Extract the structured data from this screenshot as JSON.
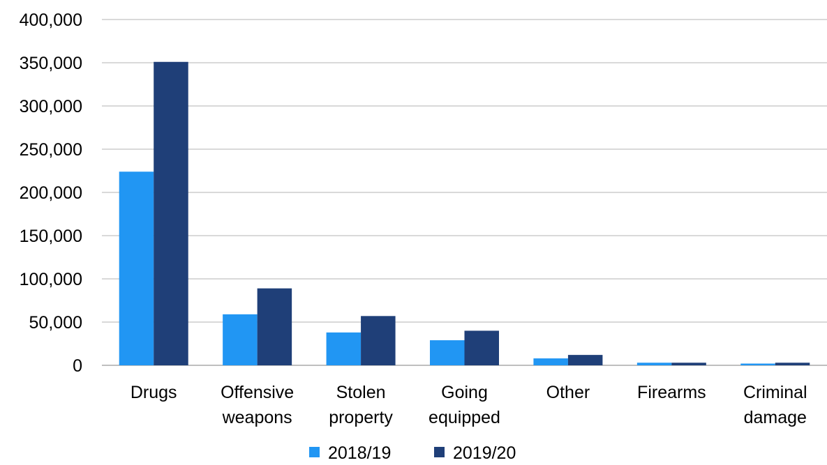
{
  "chart_data": {
    "type": "bar",
    "title": "",
    "xlabel": "",
    "ylabel": "",
    "categories": [
      [
        "Drugs"
      ],
      [
        "Offensive",
        "weapons"
      ],
      [
        "Stolen",
        "property"
      ],
      [
        "Going",
        "equipped"
      ],
      [
        "Other"
      ],
      [
        "Firearms"
      ],
      [
        "Criminal",
        "damage"
      ]
    ],
    "series": [
      {
        "name": "2018/19",
        "color": "#2196f3",
        "values": [
          224000,
          59000,
          38000,
          29000,
          8000,
          3000,
          2000
        ]
      },
      {
        "name": "2019/20",
        "color": "#1f3f78",
        "values": [
          351000,
          89000,
          57000,
          40000,
          12000,
          3000,
          3000
        ]
      }
    ],
    "ylim": [
      0,
      400000
    ],
    "yticks": [
      0,
      50000,
      100000,
      150000,
      200000,
      250000,
      300000,
      350000,
      400000
    ],
    "ytick_labels": [
      "0",
      "50,000",
      "100,000",
      "150,000",
      "200,000",
      "250,000",
      "300,000",
      "350,000",
      "400,000"
    ],
    "grid": true,
    "legend_position": "bottom"
  }
}
